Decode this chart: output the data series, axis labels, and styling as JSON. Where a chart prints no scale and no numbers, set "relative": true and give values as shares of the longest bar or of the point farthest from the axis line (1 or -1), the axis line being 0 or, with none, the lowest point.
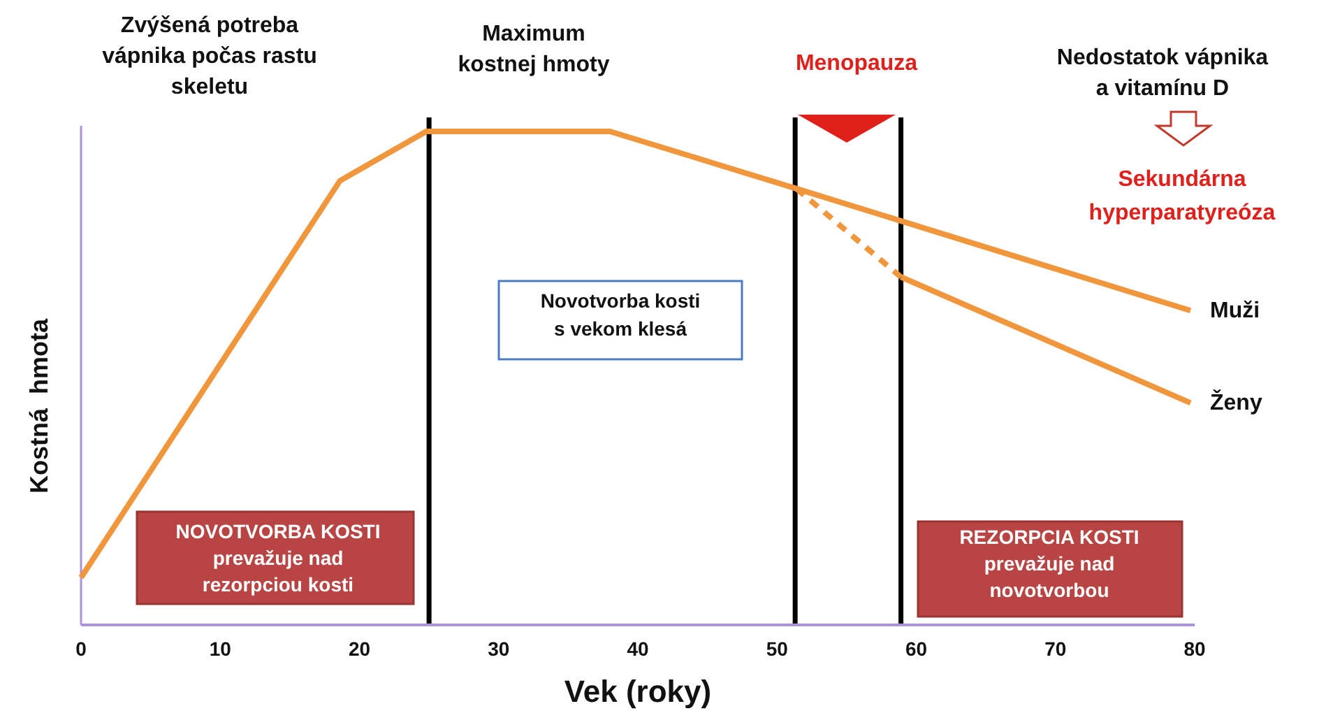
{
  "chart_data": {
    "type": "line",
    "relative": true,
    "xlabel": "Vek (roky)",
    "ylabel": "Kostná  hmota",
    "xlim": [
      0,
      80
    ],
    "xticks": [
      0,
      10,
      20,
      30,
      40,
      50,
      60,
      70,
      80
    ],
    "grid": false,
    "marker": "none",
    "series": [
      {
        "name": "Muži",
        "color": "#f0963c",
        "line_style": "solid",
        "x": [
          0,
          18.6,
          24.8,
          38,
          51.4,
          79.7
        ],
        "values": [
          0.096,
          0.9,
          1,
          1,
          0.884,
          0.637
        ]
      },
      {
        "color": "#f0963c",
        "line_style": "dashed",
        "x": [
          51.4,
          58.9
        ],
        "values": [
          0.884,
          0.705
        ]
      },
      {
        "name": "Ženy",
        "color": "#f0963c",
        "line_style": "solid",
        "x": [
          58.9,
          79.7
        ],
        "values": [
          0.705,
          0.45
        ]
      }
    ],
    "ref_lines": [
      {
        "axis": "x",
        "value": 25,
        "color": "#000000"
      },
      {
        "axis": "x",
        "value": 51.3,
        "color": "#000000"
      },
      {
        "axis": "x",
        "value": 58.9,
        "color": "#000000"
      }
    ],
    "annotations": [
      "Zvýšená potreba\nvápnika počas rastu\nskeletu",
      "Maximum\nkostnej hmoty",
      "Menopauza",
      "Nedostatok vápnika\na vitamínu D",
      "Sekundárna\nhyperparatyreóza",
      "Novotvorba kosti\ns vekom klesá",
      "NOVOTVORBA KOSTI\nprevažuje nad\nrezorpciou kosti",
      "REZORPCIA KOSTI\nprevažuje nad\nnovotvorbou"
    ]
  }
}
